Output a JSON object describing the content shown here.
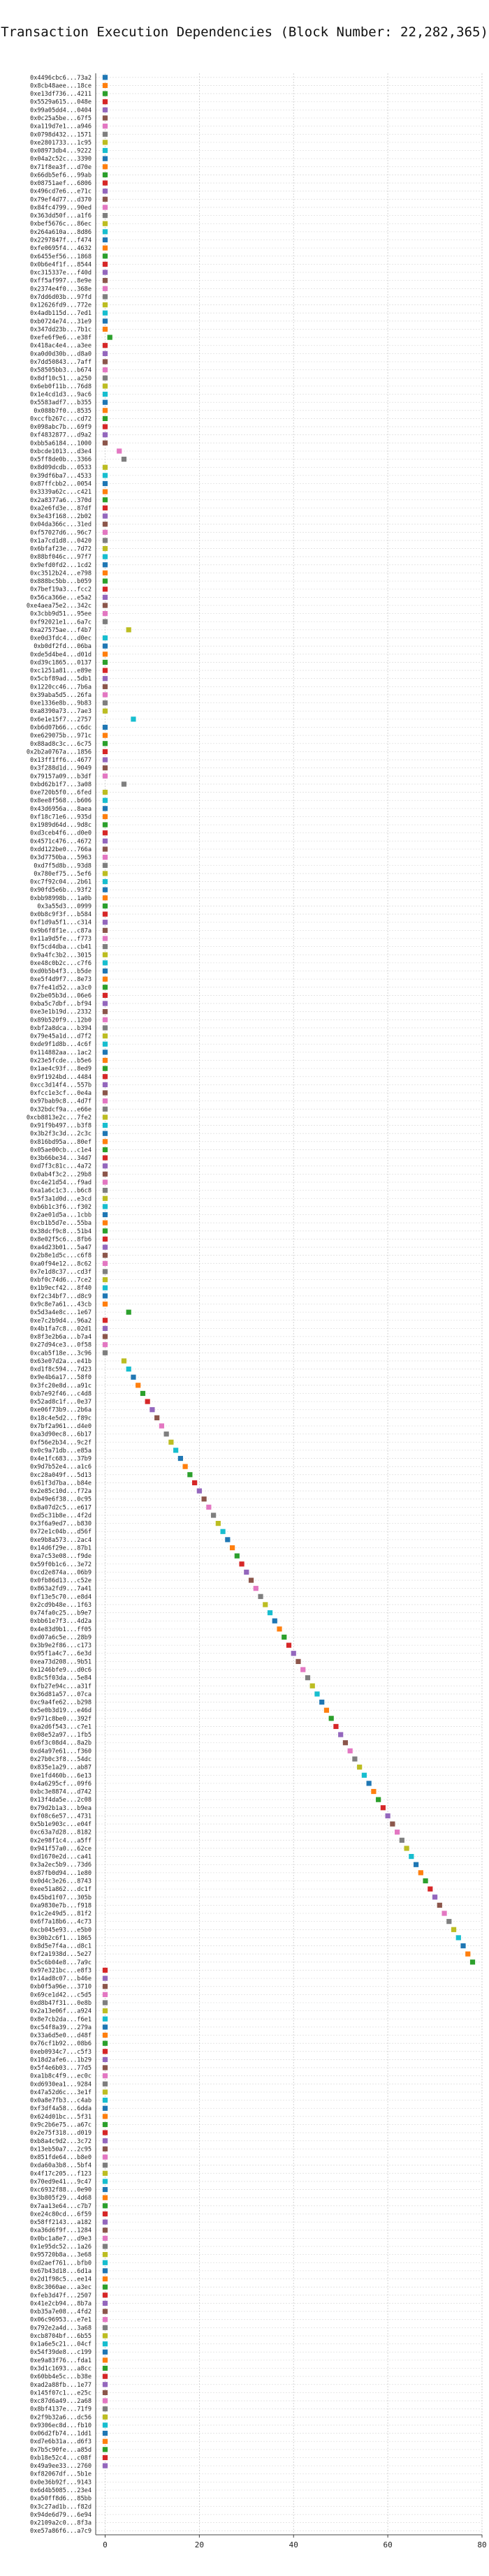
{
  "chart_data": {
    "type": "scatter",
    "title": "Transaction Execution Dependencies (Block Number: 22,282,365)",
    "xlabel": "",
    "ylabel": "",
    "xlim": [
      -2,
      80
    ],
    "xticks": [
      0,
      20,
      40,
      60,
      80
    ],
    "grid": true,
    "grid_style": "dotted",
    "colors": [
      "#1f77b4",
      "#ff7f0e",
      "#2ca02c",
      "#d62728",
      "#9467bd",
      "#8c564b",
      "#e377c2",
      "#7f7f7f",
      "#bcbd22",
      "#17becf"
    ],
    "categories": [
      "0x4496cbc6...73a2",
      "0x8cb48aee...18ce",
      "0xe13df736...4211",
      "0x5529a615...048e",
      "0x99a05dd4...0404",
      "0x0c25a5be...67f5",
      "0xa119d7e1...a946",
      "0x0798d432...1571",
      "0xe2801733...1c95",
      "0x08973db4...9222",
      "0x04a2c52c...3390",
      "0x71f8ea3f...d70e",
      "0x66db5ef6...99ab",
      "0x08751aef...6806",
      "0x496cd7e6...e71c",
      "0x79ef4d77...d370",
      "0x84fc4799...90ed",
      "0x363dd50f...a1f6",
      "0xbef5676c...86ec",
      "0x264a610a...8d86",
      "0x2297847f...f474",
      "0xfe0695f4...4632",
      "0x6455ef56...1868",
      "0x0b6e4f1f...8544",
      "0xc315337e...f40d",
      "0xff5af997...8e9e",
      "0x2374e4f0...368e",
      "0x7dd6d03b...97fd",
      "0x12626fd9...772e",
      "0x4adb115d...7ed1",
      "0xb0724e74...31e9",
      "0x347dd23b...7b1c",
      "0xefe6f9e6...e38f",
      "0x418ac4e4...a3ee",
      "0xa0d0d30b...d8a0",
      "0x7dd50843...7aff",
      "0x58505bb3...b674",
      "0x8df10c51...a250",
      "0x6eb0f11b...76d8",
      "0x1e4cd1d3...9ac6",
      "0x5583adf7...b355",
      "0x088b7f0...8535",
      "0xccfb267c...cd72",
      "0x098abc7b...69f9",
      "0xf4832877...d9a2",
      "0xbb5a6184...1000",
      "0xbcde1013...d3e4",
      "0x5ff8de0b...3366",
      "0x8d09dcdb...0533",
      "0x39df6ba7...4533",
      "0x87ffcbb2...0054",
      "0x3339a62c...c421",
      "0x2a8377a6...370d",
      "0xa2e6fd3e...87df",
      "0x3e43f168...2b02",
      "0x04da366c...31ed",
      "0xf57027d6...96c7",
      "0x1a7cd1d8...0420",
      "0x6bfaf23e...7d72",
      "0x88bf046c...97f7",
      "0x9efd0fd2...1cd2",
      "0xc3512b24...e798",
      "0x888bc5bb...b059",
      "0x7bef19a3...fcc2",
      "0x56ca366e...e5a2",
      "0xe4aea75e2...342c",
      "0x3cbb9d51...95ee",
      "0xf92021e1...6a7c",
      "0xa27575ae...f4b7",
      "0xe0d3fdc4...d0ec",
      "0xb0df2fd...06ba",
      "0xde5d4be4...d01d",
      "0xd39c1865...0137",
      "0xc1251a81...e89e",
      "0x5cbf89ad...5db1",
      "0x1220cc46...7b6a",
      "0x39aba5d5...26fa",
      "0xe1336e8b...9b83",
      "0xa8390a73...7ae3",
      "0x6e1e15f7...2757",
      "0xb6d07b66...c6dc",
      "0xe629075b...971c",
      "0x88ad8c3c...6c75",
      "0x2b2a0767a...1856",
      "0x13ff1ff6...4677",
      "0x3f288d1d...9049",
      "0x79157a09...b3df",
      "0xbd62b1f7...3a08",
      "0xe720b5f0...6fed",
      "0x8ee8f568...b606",
      "0x43d6956a...8aea",
      "0xf18c71e6...935d",
      "0x1989d64d...9d8c",
      "0xd3ceb4f6...d0e0",
      "0x4571c476...4672",
      "0xdd122be0...766a",
      "0x3d7750ba...5963",
      "0xd7f5d8b...93d8",
      "0x780ef75...5ef6",
      "0xc7f92c04...2b61",
      "0x90fd5e6b...93f2",
      "0xbb98998b...1a0b",
      "0x3a55d3...0999",
      "0x0b8c9f3f...b584",
      "0xf1d9a5f1...c314",
      "0x9b6f8f1e...c87a",
      "0x11a9d5fe...f773",
      "0xf5cd4dba...cb41",
      "0x9a4fc3b2...3015",
      "0xe48c0b2c...c7f6",
      "0xd0b5b4f3...b5de",
      "0xe5f4d9f7...8e73",
      "0x7fe41d52...a3c0",
      "0x2be05b3d...06e6",
      "0xba5c7dbf...bf94",
      "0xe3e1b19d...2332",
      "0x89b520f9...12b0",
      "0xbf2a8dca...b394",
      "0x79e45a1d...d7f2",
      "0xde9f1d8b...4c6f",
      "0x114882aa...1ac2",
      "0x23e5fcde...b5e6",
      "0x1ae4c93f...8ed9",
      "0x9f1924bd...4484",
      "0xcc3d14f4...557b",
      "0xfcc1e3cf...0e4a",
      "0x97bab9c8...4d7f",
      "0x32bdcf9a...e66e",
      "0xcb8813e2c...7fe2",
      "0x91f9b497...b3f8",
      "0x3b2f3c3d...2c3c",
      "0x816bd95a...80ef",
      "0x05ae00cb...c1e4",
      "0x3b66be34...34d7",
      "0xd7f3c81c...4a72",
      "0x0ab4f3c2...29b8",
      "0xc4e21d54...f9ad",
      "0xa1a6c1c3...b6c8",
      "0x5f3a1d0d...e3cd",
      "0xb6b1c3f6...f302",
      "0x2ae01d5a...1cbb",
      "0xcb1b5d7e...55ba",
      "0x38dcf9c8...51b4",
      "0x8e02f5c6...8fb6",
      "0xa4d23b01...5a47",
      "0x2b8e1d5c...c6f8",
      "0xa0f94e12...8c62",
      "0x7e1d8c37...cd3f",
      "0xbf0c74d6...7ce2",
      "0x1b9ecf42...8f40",
      "0xf2c34bf7...d8c9",
      "0x9c8e7a61...43cb",
      "0x5d3a4e8c...1e67",
      "0xe7c2b9d4...96a2",
      "0x4b1fa7c8...02d1",
      "0x8f3e2b6a...b7a4",
      "0x27d94ce3...0f58",
      "0xcab5f18e...3c96",
      "0x63e07d2a...e41b",
      "0xd1f8c594...7d23",
      "0x9e4b6a17...58f0",
      "0x3fc20e8d...a91c",
      "0xb7e92f46...c4d8",
      "0x52ad8c1f...0e37",
      "0xe06f73b9...2b6a",
      "0x18c4e5d2...f89c",
      "0x7bf2a961...d4e0",
      "0xa3d90ec8...6b17",
      "0xf56e2b34...9c2f",
      "0x0c9a71db...e85a",
      "0x4e1fc683...37b9",
      "0x9d7b52e4...a1c6",
      "0xc28a049f...5d13",
      "0x61f3d7ba...b84e",
      "0x2e85c10d...f72a",
      "0xb49e6f38...0c95",
      "0x8a07d2c5...e617",
      "0xd5c31b8e...4f2d",
      "0x3f6a9ed7...b830",
      "0x72e1c04b...d56f",
      "0xe9b8a573...2ac4",
      "0x14d6f29e...87b1",
      "0xa7c53e08...f9de",
      "0x59f0b1c6...3e72",
      "0xcd2e874a...06b9",
      "0x0fb86d13...c52e",
      "0x863a2fd9...7a41",
      "0xf13e5c70...e8d4",
      "0x2cd9b48e...1f63",
      "0x74fa0c25...b9e7",
      "0xbb61e7f3...4d2a",
      "0x4e83d9b1...ff05",
      "0xd07a6c5e...28b9",
      "0x3b9e2f86...c173",
      "0x95f1a4c7...6e3d",
      "0xea73d208...9b51",
      "0x1246bfe9...d0c6",
      "0x8c5f03da...5e84",
      "0xfb27e94c...a31f",
      "0x36d81a57...07ca",
      "0xc9a4fe62...b298",
      "0x5e0b3d19...e46d",
      "0x971c8be0...392f",
      "0xa2d6f543...c7e1",
      "0x08e52a97...1fb5",
      "0x6f3c08d4...8a2b",
      "0xd4a97e61...f360",
      "0x27b0c3f8...54dc",
      "0x835e1a29...ab87",
      "0xe1fd460b...6e13",
      "0x4a6295cf...09f6",
      "0xbc3e8874...d742",
      "0x13f4da5e...2c08",
      "0x79d2b1a3...b9ea",
      "0xf08c6e57...4731",
      "0x5b1e903c...e04f",
      "0xc63a7d28...8182",
      "0x2e98f1c4...a5ff",
      "0x941f57a0...62ce",
      "0xd1670e2d...ca41",
      "0x3a2ec5b9...73d6",
      "0x87fb0d94...1e80",
      "0x0d4c3e26...8743",
      "0xee51a862...dc1f",
      "0x45bd1f07...305b",
      "0xa9830e7b...f918",
      "0x1c2e49d5...81f2",
      "0x6f7a18b6...4c73",
      "0xcb045e93...e5b0",
      "0x30b2c6f1...1865",
      "0x8d5e7f4a...d8c1",
      "0xf2a1938d...5e27",
      "0x5c6b04e8...7a9c",
      "0x97e321bc...e8f3",
      "0x14ad8c07...b46e",
      "0xb0f5a96e...3710",
      "0x69ce1d42...c5d5",
      "0xd8b47f31...0e8b",
      "0x2a13e06f...a924",
      "0x8e7cb2da...f6e1",
      "0xc54f8a39...279a",
      "0x33a6d5e0...d48f",
      "0x76cf1b92...08b6",
      "0xeb0934c7...c5f3",
      "0x18d2afe6...1b29",
      "0x5f4e6b03...77d5",
      "0xa1b8c4f9...ec0c",
      "0xd6930ea1...9284",
      "0x47a52d6c...3e1f",
      "0x0a8e7fb3...c4ab",
      "0xf3df4a58...6dda",
      "0x624d01bc...5f31",
      "0x9c2b6e75...a67c",
      "0x2e75f318...d019",
      "0xb8a4c9d2...3c72",
      "0x13eb50a7...2c95",
      "0x851fde64...b8e0",
      "0xda60a3b8...5bf4",
      "0x4f17c205...f123",
      "0x70ed9e41...9c47",
      "0xc6932f88...0e90",
      "0x3b805f29...4d68",
      "0x7aa13e64...c7b7",
      "0xe24c80cd...6f59",
      "0x58ff2143...a182",
      "0xa36d6f9f...1284",
      "0x0bc1a8e7...d9e3",
      "0x1e95dc52...1a26",
      "0x95720b8a...3e68",
      "0xd2aef761...bfb0",
      "0x67b43d18...6d1a",
      "0x2d1f98c5...ee14",
      "0x8c3060ae...a3ec",
      "0xfeb3d47f...2507",
      "0x41e2cb94...8b7a",
      "0xb35a7e08...4fd2",
      "0x06c96953...e7e1",
      "0x792e2a4d...3a68",
      "0xcb8704bf...6b55",
      "0x1a6e5c21...04cf",
      "0x54f39de8...c199",
      "0xe9a83f76...fda1",
      "0x3d1c1693...a8cc",
      "0x60bb4e5c...b38e",
      "0xad2a88fb...1e77",
      "0x145f07c1...e25c",
      "0xc87d6a49...2a68",
      "0x8bf4137e...71f9",
      "0x2f9b32a6...dc56",
      "0x9306ec8d...fb10",
      "0x06d2fb74...1dd1",
      "0xd7e6b31a...d6f3",
      "0x7b5c90fe...a85d",
      "0xb18e52c4...c08f",
      "0x49a9ee33...2760",
      "0xf82067df...5b1e",
      "0x0e36b92f...9143",
      "0x6d4b5085...23e4",
      "0xa50ff8d6...85bb",
      "0x3c27ad1b...f82d",
      "0x94de6d79...6e94",
      "0x2109a2c0...8f3a",
      "0xe57a86f6...a7c9"
    ],
    "series": [
      {
        "values": [
          0,
          0,
          0,
          0,
          0,
          0,
          0,
          0,
          0,
          0,
          0,
          0,
          0,
          0,
          0,
          0,
          0,
          0,
          0,
          0,
          0,
          0,
          0,
          0,
          0,
          0,
          0,
          0,
          0,
          0,
          0,
          0,
          1,
          0,
          0,
          0,
          0,
          0,
          0,
          0,
          0,
          0,
          0,
          0,
          0,
          0,
          3,
          4,
          0,
          0,
          0,
          0,
          0,
          0,
          0,
          0,
          0,
          0,
          0,
          0,
          0,
          0,
          0,
          0,
          0,
          0,
          0,
          0,
          5,
          0,
          0,
          0,
          0,
          0,
          0,
          0,
          0,
          0,
          0,
          6,
          0,
          0,
          0,
          0,
          0,
          0,
          0,
          4,
          0,
          0,
          0,
          0,
          0,
          0,
          0,
          0,
          0,
          0,
          0,
          0,
          0,
          0,
          0,
          0,
          0,
          0,
          0,
          0,
          0,
          0,
          0,
          0,
          0,
          0,
          0,
          0,
          0,
          0,
          0,
          0,
          0,
          0,
          0,
          0,
          0,
          0,
          0,
          0,
          0,
          0,
          0,
          0,
          0,
          0,
          0,
          0,
          0,
          0,
          0,
          0,
          0,
          0,
          0,
          0,
          0,
          0,
          0,
          0,
          0,
          0,
          0,
          0,
          5,
          0,
          0,
          0,
          0,
          0,
          4,
          5,
          6,
          7,
          8,
          9,
          10,
          11,
          12,
          13,
          14,
          15,
          16,
          17,
          18,
          19,
          20,
          21,
          22,
          23,
          24,
          25,
          26,
          27,
          28,
          29,
          30,
          31,
          32,
          33,
          34,
          35,
          36,
          37,
          38,
          39,
          40,
          41,
          42,
          43,
          44,
          45,
          46,
          47,
          48,
          49,
          50,
          51,
          52,
          53,
          54,
          55,
          56,
          57,
          58,
          59,
          60,
          61,
          62,
          63,
          64,
          65,
          66,
          67,
          68,
          69,
          70,
          71,
          72,
          73,
          74,
          75,
          76,
          77,
          78,
          0,
          0,
          0,
          0,
          0,
          0,
          0,
          0,
          0,
          0,
          0,
          0,
          0,
          0,
          0,
          0,
          0,
          0,
          0,
          0,
          0,
          0,
          0,
          0,
          0,
          0,
          0,
          0,
          0,
          0,
          0,
          0,
          0,
          0,
          0,
          0,
          0,
          0,
          0,
          0,
          0,
          0,
          0,
          0,
          0,
          0,
          0,
          0,
          0,
          0,
          0,
          0,
          0,
          0,
          0,
          0,
          0,
          0,
          0,
          0,
          0,
          0
        ]
      }
    ]
  }
}
